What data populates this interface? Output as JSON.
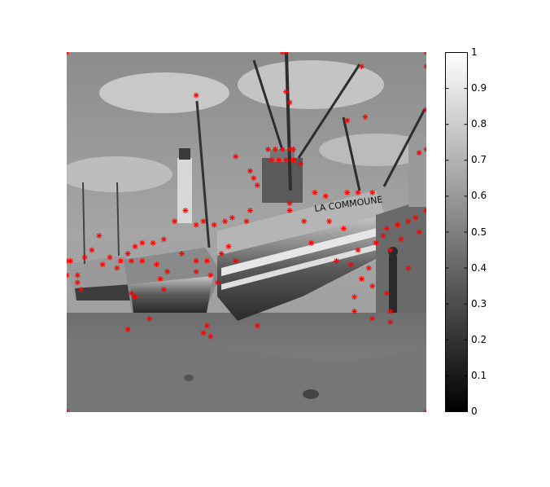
{
  "figure": {
    "image_content": "grayscale photograph of fishing boats beached at low tide with a lighthouse, overlaid with red star keypoint markers",
    "boat_lettering": "LA COMMOUNE",
    "marker_color": "#ff0000",
    "colormap": "gray"
  },
  "colorbar": {
    "ticks": [
      "1",
      "0.9",
      "0.8",
      "0.7",
      "0.6",
      "0.5",
      "0.4",
      "0.3",
      "0.2",
      "0.1",
      "0"
    ],
    "range": [
      0,
      1
    ]
  },
  "keypoints_relative": [
    [
      0.0,
      0.0
    ],
    [
      0.6,
      0.0
    ],
    [
      0.61,
      0.0
    ],
    [
      1.0,
      0.0
    ],
    [
      1.0,
      0.04
    ],
    [
      0.36,
      0.12
    ],
    [
      0.61,
      0.11
    ],
    [
      0.62,
      0.14
    ],
    [
      0.82,
      0.04
    ],
    [
      0.78,
      0.19
    ],
    [
      0.83,
      0.18
    ],
    [
      1.0,
      0.16
    ],
    [
      1.0,
      0.27
    ],
    [
      0.98,
      0.28
    ],
    [
      0.47,
      0.29
    ],
    [
      0.51,
      0.33
    ],
    [
      0.52,
      0.35
    ],
    [
      0.53,
      0.37
    ],
    [
      0.56,
      0.27
    ],
    [
      0.58,
      0.27
    ],
    [
      0.6,
      0.27
    ],
    [
      0.62,
      0.27
    ],
    [
      0.63,
      0.27
    ],
    [
      0.57,
      0.3
    ],
    [
      0.59,
      0.3
    ],
    [
      0.61,
      0.3
    ],
    [
      0.63,
      0.3
    ],
    [
      0.65,
      0.31
    ],
    [
      0.69,
      0.39
    ],
    [
      0.72,
      0.4
    ],
    [
      0.78,
      0.39
    ],
    [
      0.81,
      0.39
    ],
    [
      0.85,
      0.39
    ],
    [
      1.0,
      0.44
    ],
    [
      0.97,
      0.46
    ],
    [
      0.95,
      0.47
    ],
    [
      0.92,
      0.48
    ],
    [
      0.89,
      0.49
    ],
    [
      0.88,
      0.51
    ],
    [
      0.86,
      0.53
    ],
    [
      0.9,
      0.55
    ],
    [
      0.93,
      0.52
    ],
    [
      0.98,
      0.5
    ],
    [
      0.95,
      0.6
    ],
    [
      0.84,
      0.6
    ],
    [
      0.81,
      0.55
    ],
    [
      0.77,
      0.49
    ],
    [
      0.73,
      0.47
    ],
    [
      0.68,
      0.53
    ],
    [
      0.62,
      0.42
    ],
    [
      0.51,
      0.44
    ],
    [
      0.5,
      0.47
    ],
    [
      0.46,
      0.46
    ],
    [
      0.44,
      0.47
    ],
    [
      0.41,
      0.48
    ],
    [
      0.38,
      0.47
    ],
    [
      0.36,
      0.48
    ],
    [
      0.33,
      0.44
    ],
    [
      0.3,
      0.47
    ],
    [
      0.27,
      0.52
    ],
    [
      0.24,
      0.53
    ],
    [
      0.21,
      0.53
    ],
    [
      0.19,
      0.54
    ],
    [
      0.17,
      0.56
    ],
    [
      0.15,
      0.58
    ],
    [
      0.12,
      0.57
    ],
    [
      0.09,
      0.51
    ],
    [
      0.07,
      0.55
    ],
    [
      0.05,
      0.57
    ],
    [
      0.03,
      0.62
    ],
    [
      0.01,
      0.58
    ],
    [
      0.0,
      0.58
    ],
    [
      0.0,
      0.62
    ],
    [
      0.03,
      0.64
    ],
    [
      0.04,
      0.66
    ],
    [
      0.1,
      0.59
    ],
    [
      0.14,
      0.6
    ],
    [
      0.18,
      0.58
    ],
    [
      0.21,
      0.58
    ],
    [
      0.25,
      0.59
    ],
    [
      0.28,
      0.61
    ],
    [
      0.32,
      0.56
    ],
    [
      0.36,
      0.58
    ],
    [
      0.39,
      0.58
    ],
    [
      0.43,
      0.56
    ],
    [
      0.45,
      0.54
    ],
    [
      0.47,
      0.58
    ],
    [
      0.26,
      0.63
    ],
    [
      0.27,
      0.66
    ],
    [
      0.36,
      0.61
    ],
    [
      0.4,
      0.62
    ],
    [
      0.42,
      0.64
    ],
    [
      0.18,
      0.67
    ],
    [
      0.19,
      0.68
    ],
    [
      0.17,
      0.77
    ],
    [
      0.23,
      0.74
    ],
    [
      0.39,
      0.76
    ],
    [
      0.38,
      0.78
    ],
    [
      0.4,
      0.79
    ],
    [
      0.53,
      0.76
    ],
    [
      0.62,
      0.44
    ],
    [
      0.66,
      0.47
    ],
    [
      0.75,
      0.58
    ],
    [
      0.79,
      0.59
    ],
    [
      0.82,
      0.63
    ],
    [
      0.85,
      0.65
    ],
    [
      0.8,
      0.68
    ],
    [
      0.8,
      0.72
    ],
    [
      0.89,
      0.67
    ],
    [
      0.9,
      0.72
    ],
    [
      0.9,
      0.75
    ],
    [
      0.85,
      0.74
    ],
    [
      0.0,
      1.0
    ],
    [
      1.0,
      1.0
    ]
  ]
}
